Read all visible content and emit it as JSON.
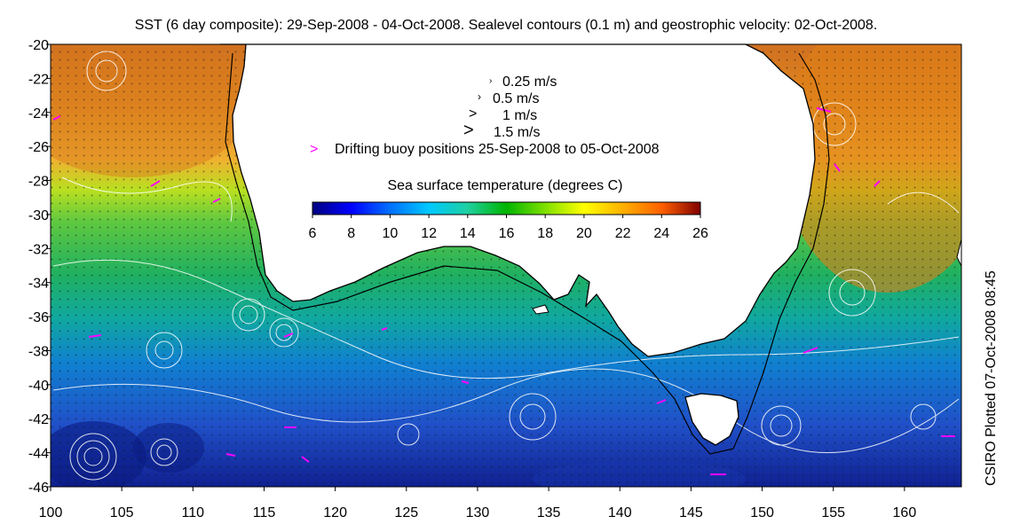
{
  "title": "SST (6 day composite): 29-Sep-2008 - 04-Oct-2008. Sealevel contours (0.1 m) and geostrophic velocity: 02-Oct-2008.",
  "side_note": "CSIRO Plotted 07-Oct-2008 08:45",
  "map": {
    "lon_range": [
      100,
      164
    ],
    "lat_range": [
      -46,
      -20
    ],
    "x_ticks": [
      "100",
      "105",
      "110",
      "115",
      "120",
      "125",
      "130",
      "135",
      "140",
      "145",
      "150",
      "155",
      "160"
    ],
    "y_ticks": [
      "-20",
      "-22",
      "-24",
      "-26",
      "-28",
      "-30",
      "-32",
      "-34",
      "-36",
      "-38",
      "-40",
      "-42",
      "-44",
      "-46"
    ],
    "land_color": "#ffffff",
    "coast_color": "#000000",
    "contour_color": "#ffffff",
    "buoy_color": "#ff00ff"
  },
  "legend": {
    "vectors": [
      {
        "label": "0.25 m/s"
      },
      {
        "label": "0.5 m/s"
      },
      {
        "label": "1 m/s"
      },
      {
        "label": "1.5 m/s"
      }
    ],
    "buoy_marker": ">",
    "buoy_label": "Drifting buoy positions 25-Sep-2008 to 05-Oct-2008"
  },
  "colorbar": {
    "title": "Sea surface temperature (degrees C)",
    "range": [
      6,
      26
    ],
    "ticks": [
      "6",
      "8",
      "10",
      "12",
      "14",
      "16",
      "18",
      "20",
      "22",
      "24",
      "26"
    ],
    "colors": [
      "#00007f",
      "#0000ff",
      "#0070ff",
      "#00c8ff",
      "#1fd0a0",
      "#00b400",
      "#7fe000",
      "#ffff00",
      "#ffb000",
      "#ff6000",
      "#c00000",
      "#800000"
    ]
  }
}
